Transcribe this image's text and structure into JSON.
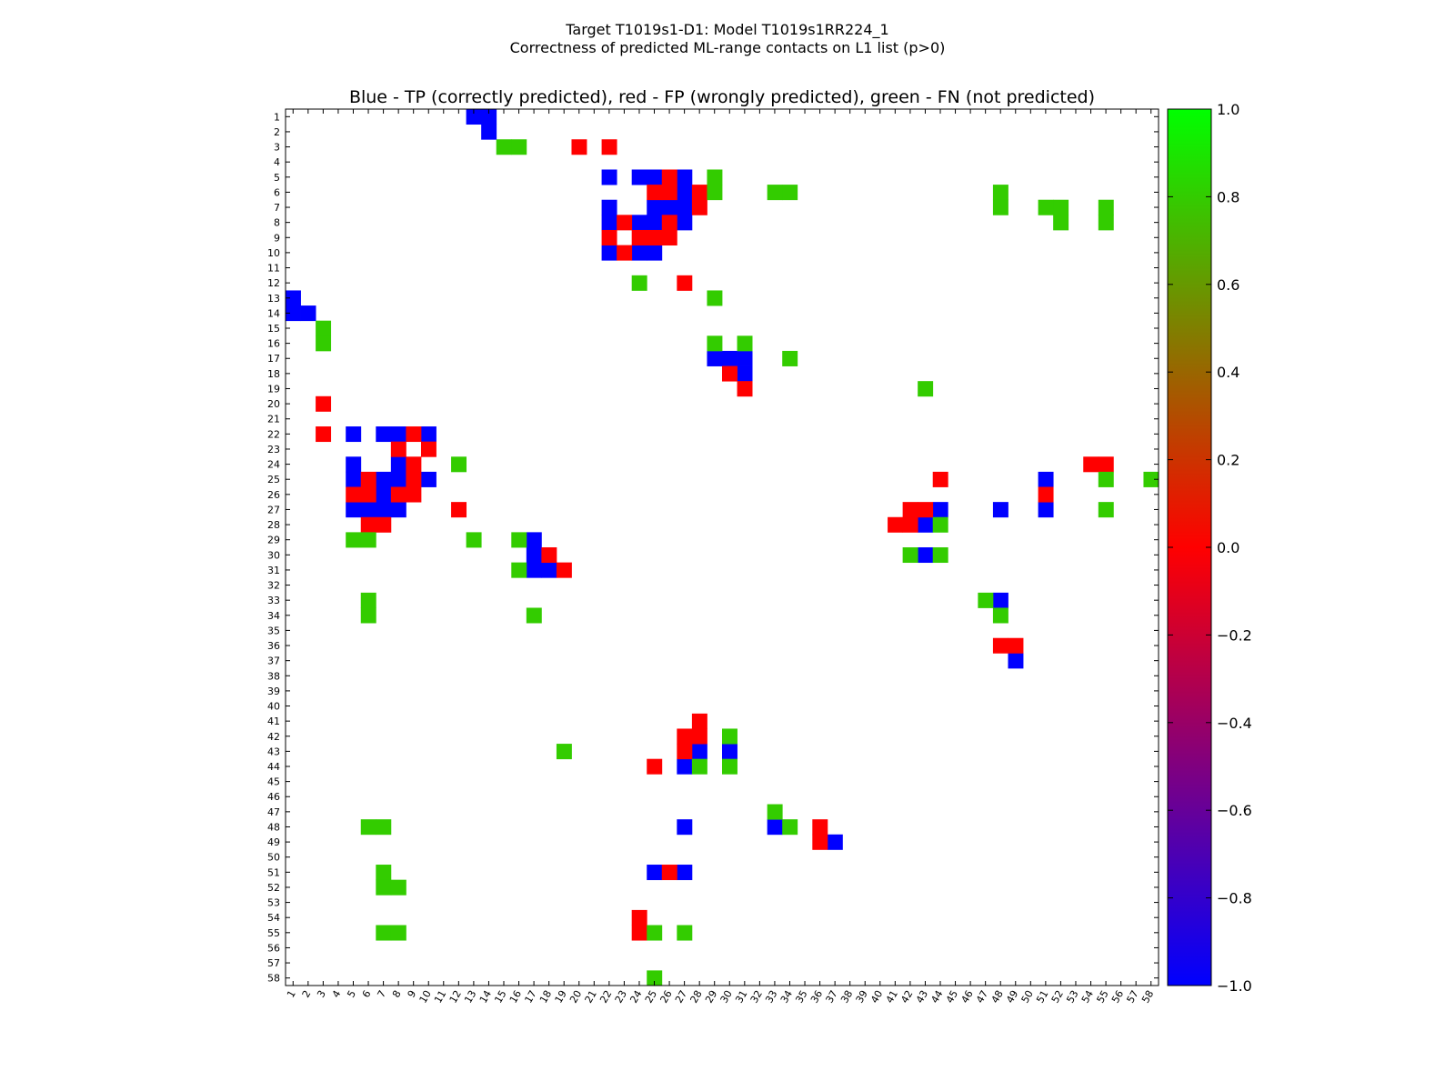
{
  "figure": {
    "title_line1": "Target T1019s1-D1: Model T1019s1RR224_1",
    "title_line2": "Correctness of predicted ML-range contacts on L1 list (p>0)"
  },
  "chart_data": {
    "type": "heatmap",
    "title": "Blue - TP (correctly predicted), red - FP (wrongly predicted), green - FN (not predicted)",
    "xlabel": "",
    "ylabel": "",
    "n": 58,
    "x_tick_labels": [
      "1",
      "2",
      "3",
      "4",
      "5",
      "6",
      "7",
      "8",
      "9",
      "10",
      "11",
      "12",
      "13",
      "14",
      "15",
      "16",
      "17",
      "18",
      "19",
      "20",
      "21",
      "22",
      "23",
      "24",
      "25",
      "26",
      "27",
      "28",
      "29",
      "30",
      "31",
      "32",
      "33",
      "34",
      "35",
      "36",
      "37",
      "38",
      "39",
      "40",
      "41",
      "42",
      "43",
      "44",
      "45",
      "46",
      "47",
      "48",
      "49",
      "50",
      "51",
      "52",
      "53",
      "54",
      "55",
      "56",
      "57",
      "58"
    ],
    "y_tick_labels": [
      "1",
      "2",
      "3",
      "4",
      "5",
      "6",
      "7",
      "8",
      "9",
      "10",
      "11",
      "12",
      "13",
      "14",
      "15",
      "16",
      "17",
      "18",
      "19",
      "20",
      "21",
      "22",
      "23",
      "24",
      "25",
      "26",
      "27",
      "28",
      "29",
      "30",
      "31",
      "32",
      "33",
      "34",
      "35",
      "36",
      "37",
      "38",
      "39",
      "40",
      "41",
      "42",
      "43",
      "44",
      "45",
      "46",
      "47",
      "48",
      "49",
      "50",
      "51",
      "52",
      "53",
      "54",
      "55",
      "56",
      "57",
      "58"
    ],
    "legend": {
      "TP": "blue",
      "FP": "red",
      "FN": "green"
    },
    "value_map": {
      "TP": -1.0,
      "FP": 0.0,
      "FN": 0.8
    },
    "colorbar": {
      "vmin": -1.0,
      "vmax": 1.0,
      "tick_labels": [
        "1.0",
        "0.8",
        "0.6",
        "0.4",
        "0.2",
        "0.0",
        "−0.2",
        "−0.4",
        "−0.6",
        "−0.8",
        "−1.0"
      ],
      "tick_values": [
        1.0,
        0.8,
        0.6,
        0.4,
        0.2,
        0.0,
        -0.2,
        -0.4,
        -0.6,
        -0.8,
        -1.0
      ],
      "stops": [
        {
          "value": -1.0,
          "color": "#0000ff"
        },
        {
          "value": 0.0,
          "color": "#ff0000"
        },
        {
          "value": 1.0,
          "color": "#00ff00"
        }
      ]
    },
    "cell_colors": {
      "TP": "#0000ff",
      "FP": "#ff0000",
      "FN": "#33cc00"
    },
    "cells": {
      "TP": [
        [
          1,
          13
        ],
        [
          1,
          14
        ],
        [
          2,
          14
        ],
        [
          5,
          22
        ],
        [
          5,
          24
        ],
        [
          5,
          25
        ],
        [
          5,
          27
        ],
        [
          6,
          27
        ],
        [
          7,
          22
        ],
        [
          7,
          25
        ],
        [
          7,
          26
        ],
        [
          7,
          27
        ],
        [
          8,
          22
        ],
        [
          8,
          24
        ],
        [
          8,
          25
        ],
        [
          8,
          27
        ],
        [
          10,
          22
        ],
        [
          10,
          24
        ],
        [
          10,
          25
        ],
        [
          13,
          1
        ],
        [
          14,
          1
        ],
        [
          14,
          2
        ],
        [
          17,
          29
        ],
        [
          17,
          30
        ],
        [
          17,
          31
        ],
        [
          18,
          31
        ],
        [
          22,
          5
        ],
        [
          22,
          7
        ],
        [
          22,
          8
        ],
        [
          22,
          10
        ],
        [
          24,
          5
        ],
        [
          24,
          8
        ],
        [
          25,
          5
        ],
        [
          25,
          7
        ],
        [
          25,
          8
        ],
        [
          25,
          10
        ],
        [
          25,
          51
        ],
        [
          26,
          7
        ],
        [
          27,
          5
        ],
        [
          27,
          6
        ],
        [
          27,
          7
        ],
        [
          27,
          8
        ],
        [
          27,
          44
        ],
        [
          27,
          48
        ],
        [
          27,
          51
        ],
        [
          28,
          43
        ],
        [
          29,
          17
        ],
        [
          30,
          17
        ],
        [
          30,
          43
        ],
        [
          31,
          17
        ],
        [
          31,
          18
        ],
        [
          33,
          48
        ],
        [
          37,
          49
        ],
        [
          43,
          28
        ],
        [
          43,
          30
        ],
        [
          44,
          27
        ],
        [
          48,
          27
        ],
        [
          48,
          33
        ],
        [
          49,
          37
        ],
        [
          51,
          25
        ],
        [
          51,
          27
        ]
      ],
      "FP": [
        [
          3,
          20
        ],
        [
          3,
          22
        ],
        [
          5,
          26
        ],
        [
          6,
          25
        ],
        [
          6,
          26
        ],
        [
          6,
          28
        ],
        [
          7,
          28
        ],
        [
          8,
          23
        ],
        [
          8,
          26
        ],
        [
          9,
          22
        ],
        [
          9,
          24
        ],
        [
          9,
          25
        ],
        [
          9,
          26
        ],
        [
          10,
          23
        ],
        [
          12,
          27
        ],
        [
          18,
          30
        ],
        [
          19,
          31
        ],
        [
          20,
          3
        ],
        [
          22,
          3
        ],
        [
          22,
          9
        ],
        [
          23,
          8
        ],
        [
          23,
          10
        ],
        [
          24,
          9
        ],
        [
          24,
          54
        ],
        [
          24,
          55
        ],
        [
          25,
          6
        ],
        [
          25,
          9
        ],
        [
          25,
          44
        ],
        [
          26,
          5
        ],
        [
          26,
          6
        ],
        [
          26,
          8
        ],
        [
          26,
          9
        ],
        [
          26,
          51
        ],
        [
          27,
          12
        ],
        [
          27,
          42
        ],
        [
          27,
          43
        ],
        [
          28,
          6
        ],
        [
          28,
          7
        ],
        [
          28,
          41
        ],
        [
          28,
          42
        ],
        [
          30,
          18
        ],
        [
          31,
          19
        ],
        [
          36,
          48
        ],
        [
          36,
          49
        ],
        [
          41,
          28
        ],
        [
          42,
          27
        ],
        [
          42,
          28
        ],
        [
          43,
          27
        ],
        [
          44,
          25
        ],
        [
          48,
          36
        ],
        [
          49,
          36
        ],
        [
          51,
          26
        ],
        [
          54,
          24
        ],
        [
          55,
          24
        ]
      ],
      "FN": [
        [
          3,
          15
        ],
        [
          3,
          16
        ],
        [
          5,
          29
        ],
        [
          6,
          29
        ],
        [
          6,
          33
        ],
        [
          6,
          34
        ],
        [
          6,
          48
        ],
        [
          7,
          48
        ],
        [
          7,
          51
        ],
        [
          7,
          52
        ],
        [
          7,
          55
        ],
        [
          8,
          52
        ],
        [
          8,
          55
        ],
        [
          12,
          24
        ],
        [
          13,
          29
        ],
        [
          15,
          3
        ],
        [
          16,
          3
        ],
        [
          16,
          29
        ],
        [
          16,
          31
        ],
        [
          17,
          34
        ],
        [
          19,
          43
        ],
        [
          24,
          12
        ],
        [
          25,
          55
        ],
        [
          25,
          58
        ],
        [
          27,
          55
        ],
        [
          28,
          44
        ],
        [
          29,
          5
        ],
        [
          29,
          6
        ],
        [
          29,
          13
        ],
        [
          29,
          16
        ],
        [
          30,
          42
        ],
        [
          30,
          44
        ],
        [
          31,
          16
        ],
        [
          33,
          6
        ],
        [
          33,
          47
        ],
        [
          34,
          6
        ],
        [
          34,
          17
        ],
        [
          34,
          48
        ],
        [
          42,
          30
        ],
        [
          43,
          19
        ],
        [
          44,
          28
        ],
        [
          44,
          30
        ],
        [
          47,
          33
        ],
        [
          48,
          6
        ],
        [
          48,
          7
        ],
        [
          48,
          34
        ],
        [
          51,
          7
        ],
        [
          52,
          7
        ],
        [
          52,
          8
        ],
        [
          55,
          7
        ],
        [
          55,
          8
        ],
        [
          55,
          25
        ],
        [
          55,
          27
        ],
        [
          58,
          25
        ]
      ]
    }
  }
}
